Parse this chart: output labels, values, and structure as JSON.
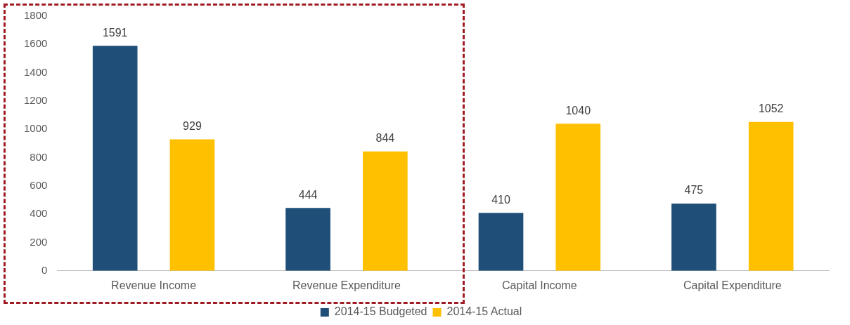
{
  "chart_data": {
    "type": "bar",
    "categories": [
      "Revenue Income",
      "Revenue Expenditure",
      "Capital Income",
      "Capital Expenditure"
    ],
    "series": [
      {
        "name": "2014-15 Budgeted",
        "color": "#1f4e79",
        "values": [
          1591,
          444,
          410,
          475
        ]
      },
      {
        "name": "2014-15 Actual",
        "color": "#ffc000",
        "values": [
          929,
          844,
          1040,
          1052
        ]
      }
    ],
    "ylim": [
      0,
      1800
    ],
    "yticks": [
      0,
      200,
      400,
      600,
      800,
      1000,
      1200,
      1400,
      1600,
      1800
    ],
    "grid": false,
    "legend": "bottom",
    "data_labels": true
  }
}
